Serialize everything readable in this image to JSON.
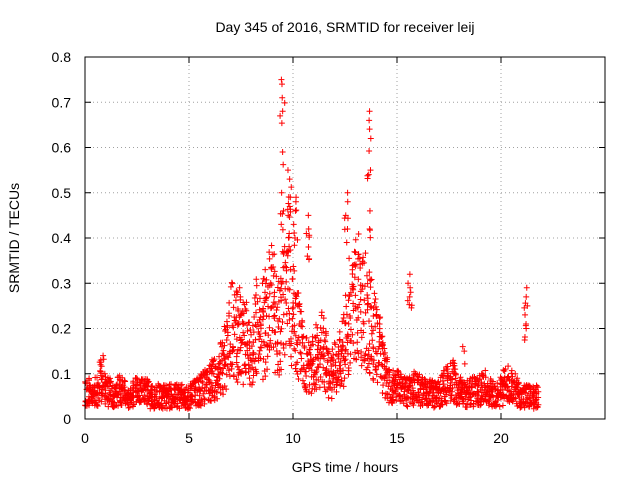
{
  "chart_data": {
    "type": "scatter",
    "title": "Day 345 of 2016, SRMTID for receiver leij",
    "xlabel": "GPS time / hours",
    "ylabel": "SRMTID / TECUs",
    "xlim": [
      0,
      25
    ],
    "ylim": [
      0,
      0.8
    ],
    "xticks": [
      0,
      5,
      10,
      15,
      20
    ],
    "yticks": [
      0,
      0.1,
      0.2,
      0.3,
      0.4,
      0.5,
      0.6,
      0.7,
      0.8
    ],
    "xtick_labels": [
      "0",
      "5",
      "10",
      "15",
      "20"
    ],
    "ytick_labels": [
      "0",
      "0.1",
      "0.2",
      "0.3",
      "0.4",
      "0.5",
      "0.6",
      "0.7",
      "0.8"
    ],
    "grid": true,
    "marker": "+",
    "series_color": "#ff0000",
    "x_step": 0.1,
    "baseline": [
      0.06,
      0.06,
      0.06,
      0.065,
      0.06,
      0.06,
      0.06,
      0.085,
      0.09,
      0.07,
      0.065,
      0.06,
      0.06,
      0.055,
      0.055,
      0.06,
      0.065,
      0.06,
      0.06,
      0.055,
      0.05,
      0.05,
      0.055,
      0.055,
      0.06,
      0.06,
      0.055,
      0.06,
      0.06,
      0.06,
      0.055,
      0.05,
      0.05,
      0.05,
      0.05,
      0.055,
      0.05,
      0.05,
      0.05,
      0.05,
      0.05,
      0.05,
      0.05,
      0.05,
      0.05,
      0.05,
      0.05,
      0.05,
      0.05,
      0.05,
      0.05,
      0.05,
      0.055,
      0.06,
      0.06,
      0.065,
      0.07,
      0.07,
      0.075,
      0.08,
      0.08,
      0.085,
      0.09,
      0.09,
      0.1,
      0.11,
      0.12,
      0.14,
      0.16,
      0.18,
      0.2,
      0.2,
      0.19,
      0.18,
      0.17,
      0.16,
      0.17,
      0.17,
      0.15,
      0.14,
      0.15,
      0.18,
      0.2,
      0.2,
      0.19,
      0.18,
      0.2,
      0.22,
      0.24,
      0.25,
      0.24,
      0.22,
      0.2,
      0.2,
      0.22,
      0.25,
      0.3,
      0.35,
      0.3,
      0.25,
      0.22,
      0.2,
      0.18,
      0.17,
      0.15,
      0.13,
      0.12,
      0.11,
      0.11,
      0.12,
      0.13,
      0.14,
      0.15,
      0.16,
      0.15,
      0.13,
      0.11,
      0.1,
      0.1,
      0.1,
      0.11,
      0.12,
      0.13,
      0.14,
      0.15,
      0.18,
      0.2,
      0.22,
      0.24,
      0.25,
      0.26,
      0.27,
      0.26,
      0.25,
      0.24,
      0.23,
      0.22,
      0.2,
      0.19,
      0.18,
      0.16,
      0.15,
      0.13,
      0.12,
      0.1,
      0.09,
      0.08,
      0.075,
      0.07,
      0.07,
      0.07,
      0.065,
      0.065,
      0.06,
      0.06,
      0.06,
      0.06,
      0.06,
      0.07,
      0.07,
      0.065,
      0.06,
      0.06,
      0.06,
      0.06,
      0.06,
      0.055,
      0.055,
      0.055,
      0.06,
      0.06,
      0.065,
      0.07,
      0.075,
      0.08,
      0.085,
      0.09,
      0.08,
      0.07,
      0.065,
      0.06,
      0.06,
      0.055,
      0.055,
      0.055,
      0.06,
      0.06,
      0.06,
      0.06,
      0.065,
      0.07,
      0.075,
      0.07,
      0.065,
      0.06,
      0.055,
      0.055,
      0.055,
      0.06,
      0.06,
      0.065,
      0.07,
      0.075,
      0.08,
      0.075,
      0.07,
      0.065,
      0.06,
      0.055,
      0.055,
      0.05,
      0.05,
      0.05,
      0.05,
      0.05,
      0.05,
      0.05,
      0.05
    ],
    "spikes": [
      {
        "x": 0.8,
        "values": [
          0.14,
          0.13,
          0.12
        ]
      },
      {
        "x": 7.4,
        "values": [
          0.29,
          0.28,
          0.27
        ]
      },
      {
        "x": 8.6,
        "values": [
          0.33,
          0.31,
          0.3
        ]
      },
      {
        "x": 9.5,
        "values": [
          0.75,
          0.74,
          0.71,
          0.68,
          0.59,
          0.5,
          0.46,
          0.43
        ]
      },
      {
        "x": 9.8,
        "values": [
          0.55,
          0.53,
          0.49,
          0.45,
          0.41,
          0.37
        ]
      },
      {
        "x": 10.1,
        "values": [
          0.49,
          0.48,
          0.46,
          0.43,
          0.4
        ]
      },
      {
        "x": 10.7,
        "values": [
          0.45,
          0.42,
          0.41,
          0.38,
          0.36
        ]
      },
      {
        "x": 12.6,
        "values": [
          0.5,
          0.48,
          0.45,
          0.42,
          0.39
        ]
      },
      {
        "x": 13.7,
        "values": [
          0.68,
          0.66,
          0.62,
          0.55,
          0.54,
          0.46,
          0.42
        ]
      },
      {
        "x": 15.6,
        "values": [
          0.32,
          0.3,
          0.29,
          0.28,
          0.27
        ]
      },
      {
        "x": 18.2,
        "values": [
          0.16,
          0.15
        ]
      },
      {
        "x": 21.2,
        "values": [
          0.29,
          0.27,
          0.25,
          0.23,
          0.21,
          0.2
        ]
      }
    ]
  }
}
